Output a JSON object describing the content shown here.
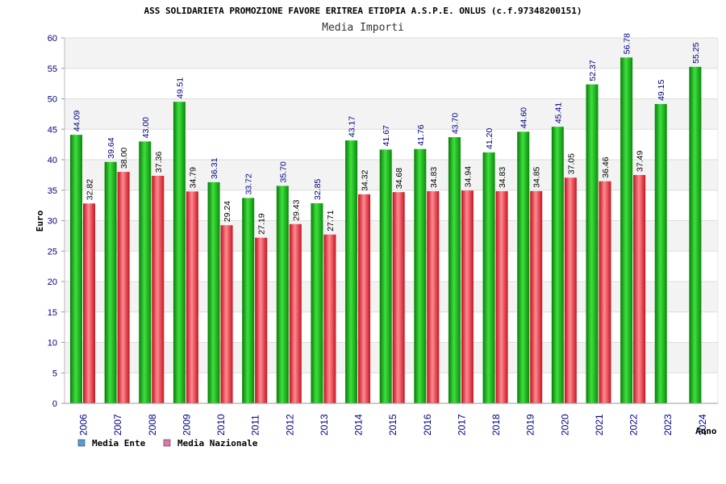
{
  "chart_data": {
    "type": "bar",
    "title": "ASS SOLIDARIETA PROMOZIONE FAVORE ERITREA ETIOPIA A.S.P.E. ONLUS (c.f.97348200151)",
    "subtitle": "Media Importi",
    "xlabel": "Anno",
    "ylabel": "Euro",
    "ylim": [
      0,
      60
    ],
    "yticks": [
      0,
      5,
      10,
      15,
      20,
      25,
      30,
      35,
      40,
      45,
      50,
      55,
      60
    ],
    "categories": [
      "2006",
      "2007",
      "2008",
      "2009",
      "2010",
      "2011",
      "2012",
      "2013",
      "2014",
      "2015",
      "2016",
      "2017",
      "2018",
      "2019",
      "2020",
      "2021",
      "2022",
      "2023",
      "2024"
    ],
    "series": [
      {
        "name": "Media Ente",
        "color": "#1fb51f",
        "legend_color": "#5b9bd5",
        "values": [
          44.09,
          39.64,
          43.0,
          49.51,
          36.31,
          33.72,
          35.7,
          32.85,
          43.17,
          41.67,
          41.76,
          43.7,
          41.2,
          44.6,
          45.41,
          52.37,
          56.78,
          49.15,
          55.25
        ],
        "labels": [
          "44.09",
          "39.64",
          "43.00",
          "49.51",
          "36.31",
          "33.72",
          "35.70",
          "32.85",
          "43.17",
          "41.67",
          "41.76",
          "43.70",
          "41.20",
          "44.60",
          "45.41",
          "52.37",
          "56.78",
          "49.15",
          "55.25"
        ]
      },
      {
        "name": "Media Nazionale",
        "color": "#e8303a",
        "legend_color": "#e377a8",
        "values": [
          32.82,
          38.0,
          37.36,
          34.79,
          29.24,
          27.19,
          29.43,
          27.71,
          34.32,
          34.68,
          34.83,
          34.94,
          34.83,
          34.85,
          37.05,
          36.46,
          37.49,
          null,
          null
        ],
        "labels": [
          "32.82",
          "38.00",
          "37.36",
          "34.79",
          "29.24",
          "27.19",
          "29.43",
          "27.71",
          "34.32",
          "34.68",
          "34.83",
          "34.94",
          "34.83",
          "34.85",
          "37.05",
          "36.46",
          "37.49",
          null,
          null
        ]
      }
    ],
    "grid": true,
    "legend": "bottom-left"
  }
}
